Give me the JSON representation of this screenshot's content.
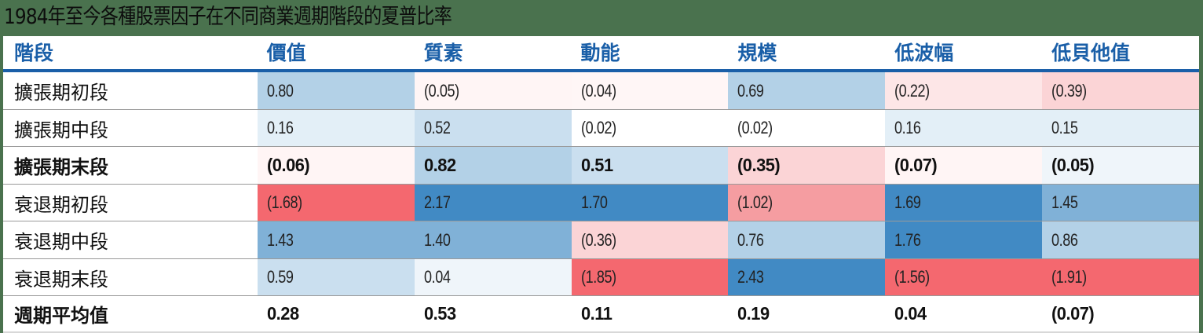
{
  "title": "1984年至今各種股票因子在不同商業週期階段的夏普比率",
  "table": {
    "header": [
      "階段",
      "價值",
      "質素",
      "動能",
      "規模",
      "低波幅",
      "低貝他值"
    ],
    "rows": [
      {
        "label": "擴張期初段",
        "bold": false,
        "cells": [
          {
            "text": "0.80",
            "color": "#b3d1e7"
          },
          {
            "text": "(0.05)",
            "color": "#fff5f5"
          },
          {
            "text": "(0.04)",
            "color": "#fff6f6"
          },
          {
            "text": "0.69",
            "color": "#b3d1e7"
          },
          {
            "text": "(0.22)",
            "color": "#fde6e7"
          },
          {
            "text": "(0.39)",
            "color": "#fbd4d6"
          }
        ]
      },
      {
        "label": "擴張期中段",
        "bold": false,
        "cells": [
          {
            "text": "0.16",
            "color": "#e3eff7"
          },
          {
            "text": "0.52",
            "color": "#cadfef"
          },
          {
            "text": "(0.02)",
            "color": "#ffffff"
          },
          {
            "text": "(0.02)",
            "color": "#ffffff"
          },
          {
            "text": "0.16",
            "color": "#e3eff7"
          },
          {
            "text": "0.15",
            "color": "#e3eff7"
          }
        ]
      },
      {
        "label": "擴張期末段",
        "bold": true,
        "cells": [
          {
            "text": "(0.06)",
            "color": "#fff5f5"
          },
          {
            "text": "0.82",
            "color": "#b3d1e7"
          },
          {
            "text": "0.51",
            "color": "#cadfef"
          },
          {
            "text": "(0.35)",
            "color": "#fbd4d6"
          },
          {
            "text": "(0.07)",
            "color": "#fff5f5"
          },
          {
            "text": "(0.05)",
            "color": "#eff5fa"
          }
        ]
      },
      {
        "label": "衰退期初段",
        "bold": false,
        "cells": [
          {
            "text": "(1.68)",
            "color": "#f4686f"
          },
          {
            "text": "2.17",
            "color": "#418ac4"
          },
          {
            "text": "1.70",
            "color": "#418ac4"
          },
          {
            "text": "(1.02)",
            "color": "#f59da1"
          },
          {
            "text": "1.69",
            "color": "#418ac4"
          },
          {
            "text": "1.45",
            "color": "#80b1d7"
          }
        ]
      },
      {
        "label": "衰退期中段",
        "bold": false,
        "cells": [
          {
            "text": "1.43",
            "color": "#80b1d7"
          },
          {
            "text": "1.40",
            "color": "#80b1d7"
          },
          {
            "text": "(0.36)",
            "color": "#fbd4d6"
          },
          {
            "text": "0.76",
            "color": "#b3d1e7"
          },
          {
            "text": "1.76",
            "color": "#418ac4"
          },
          {
            "text": "0.86",
            "color": "#b3d1e7"
          }
        ]
      },
      {
        "label": "衰退期末段",
        "bold": false,
        "cells": [
          {
            "text": "0.59",
            "color": "#cadfef"
          },
          {
            "text": "0.04",
            "color": "#eff5fa"
          },
          {
            "text": "(1.85)",
            "color": "#f4686f"
          },
          {
            "text": "2.43",
            "color": "#418ac4"
          },
          {
            "text": "(1.56)",
            "color": "#f4686f"
          },
          {
            "text": "(1.91)",
            "color": "#f4686f"
          }
        ]
      },
      {
        "label": "週期平均值",
        "bold": true,
        "cells": [
          {
            "text": "0.28",
            "color": "#ffffff"
          },
          {
            "text": "0.53",
            "color": "#ffffff"
          },
          {
            "text": "0.11",
            "color": "#ffffff"
          },
          {
            "text": "0.19",
            "color": "#ffffff"
          },
          {
            "text": "0.04",
            "color": "#ffffff"
          },
          {
            "text": "(0.07)",
            "color": "#ffffff"
          }
        ]
      }
    ]
  },
  "colors": {
    "background": "#4a724e",
    "header_text": "#1a5fa8",
    "header_rule": "#1a5fa8",
    "strong_positive": "#418ac4",
    "strong_negative": "#f4686f"
  },
  "chart_data": {
    "type": "heatmap",
    "title": "1984年至今各種股票因子在不同商業週期階段的夏普比率",
    "xlabel": "",
    "ylabel": "階段",
    "columns": [
      "價值",
      "質素",
      "動能",
      "規模",
      "低波幅",
      "低貝他值"
    ],
    "rows": [
      "擴張期初段",
      "擴張期中段",
      "擴張期末段",
      "衰退期初段",
      "衰退期中段",
      "衰退期末段",
      "週期平均值"
    ],
    "values": [
      [
        0.8,
        -0.05,
        -0.04,
        0.69,
        -0.22,
        -0.39
      ],
      [
        0.16,
        0.52,
        -0.02,
        -0.02,
        0.16,
        0.15
      ],
      [
        -0.06,
        0.82,
        0.51,
        -0.35,
        -0.07,
        -0.05
      ],
      [
        -1.68,
        2.17,
        1.7,
        -1.02,
        1.69,
        1.45
      ],
      [
        1.43,
        1.4,
        -0.36,
        0.76,
        1.76,
        0.86
      ],
      [
        0.59,
        0.04,
        -1.85,
        2.43,
        -1.56,
        -1.91
      ],
      [
        0.28,
        0.53,
        0.11,
        0.19,
        0.04,
        -0.07
      ]
    ],
    "color_scale": {
      "negative": "#f4686f",
      "neutral": "#ffffff",
      "positive": "#418ac4"
    },
    "notes": "Negative values shown in parentheses; rows 擴張期末段 and 週期平均值 in bold"
  }
}
